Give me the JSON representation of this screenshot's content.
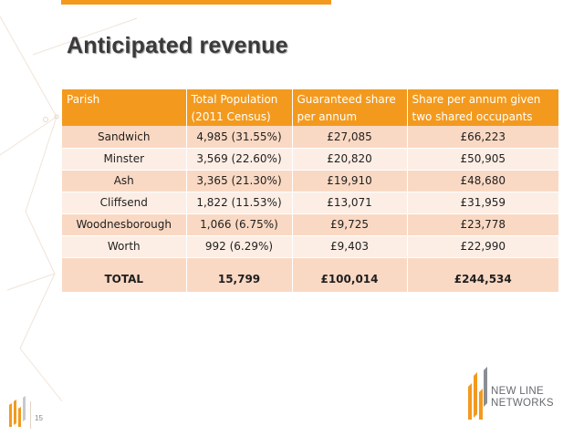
{
  "slide": {
    "title": "Anticipated revenue",
    "page_number": "15"
  },
  "table": {
    "headers": {
      "parish": "Parish",
      "population_line1": "Total Population",
      "population_line2": "(2011 Census)",
      "guaranteed_line1": "Guaranteed share",
      "guaranteed_line2": "per annum",
      "shared_line1": "Share per annum given",
      "shared_line2": "two shared occupants"
    },
    "rows": [
      {
        "parish": "Sandwich",
        "population": "4,985 (31.55%)",
        "guaranteed": "£27,085",
        "shared": "£66,223"
      },
      {
        "parish": "Minster",
        "population": "3,569 (22.60%)",
        "guaranteed": "£20,820",
        "shared": "£50,905"
      },
      {
        "parish": "Ash",
        "population": "3,365 (21.30%)",
        "guaranteed": "£19,910",
        "shared": "£48,680"
      },
      {
        "parish": "Cliffsend",
        "population": "1,822 (11.53%)",
        "guaranteed": "£13,071",
        "shared": "£31,959"
      },
      {
        "parish": "Woodnesborough",
        "population": "1,066 (6.75%)",
        "guaranteed": "£9,725",
        "shared": "£23,778"
      },
      {
        "parish": "Worth",
        "population": "992 (6.29%)",
        "guaranteed": "£9,403",
        "shared": "£22,990"
      }
    ],
    "total": {
      "parish": "TOTAL",
      "population": "15,799",
      "guaranteed": "£100,014",
      "shared": "£244,534"
    }
  },
  "brand": {
    "line1": "NEW LINE",
    "line2": "NETWORKS",
    "colors": {
      "orange": "#f39a1e",
      "text_grey": "#666a70"
    }
  },
  "colors": {
    "header_orange": "#f39a1e",
    "row_dark": "#fad9c4",
    "row_light": "#fdeee5",
    "title_text": "#3a3a3a"
  }
}
